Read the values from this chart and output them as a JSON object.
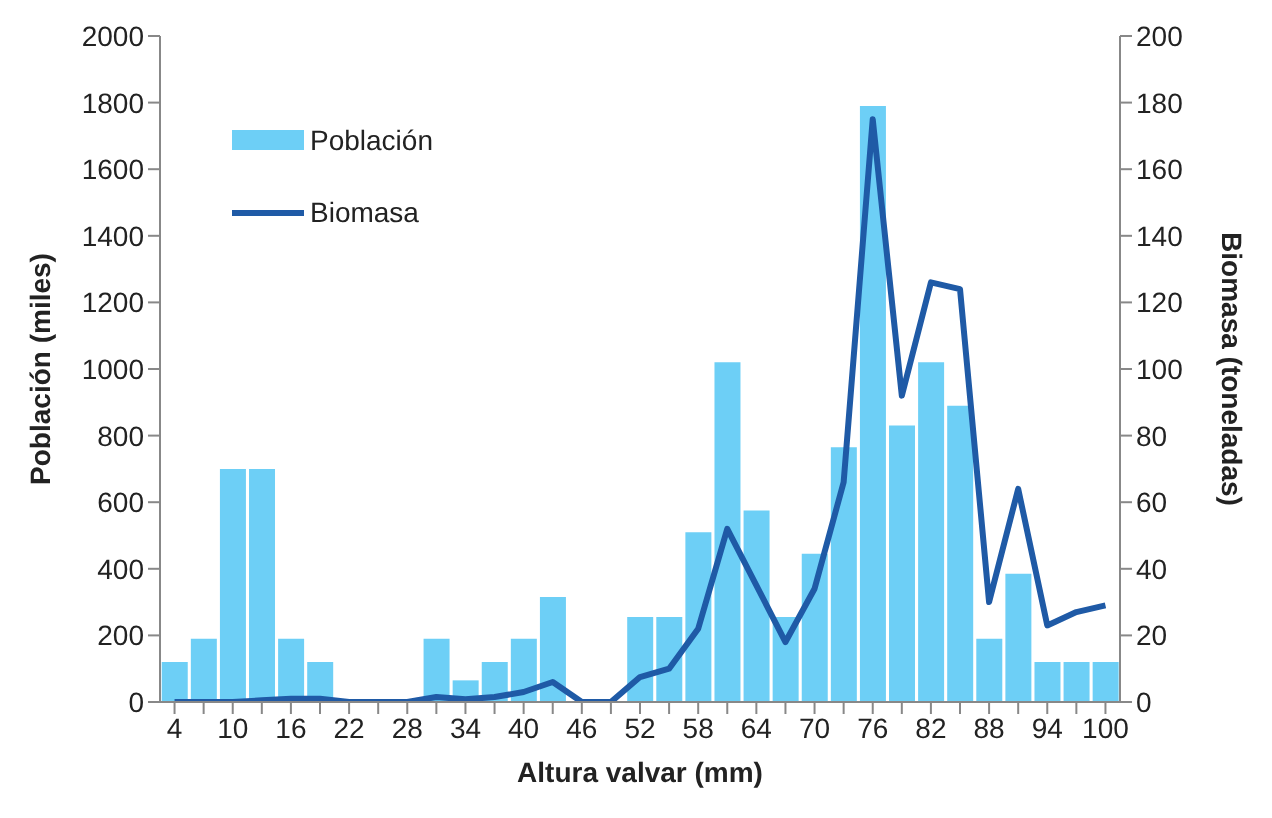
{
  "chart_data": {
    "type": "bar",
    "xlabel": "Altura valvar (mm)",
    "ylabel": "Población (miles)",
    "y2label": "Biomasa (toneladas)",
    "categories": [
      "4",
      null,
      "10",
      null,
      "16",
      null,
      "22",
      null,
      "28",
      null,
      "34",
      null,
      "40",
      null,
      "46",
      null,
      "52",
      null,
      "58",
      null,
      "64",
      null,
      "70",
      null,
      "76",
      null,
      "82",
      null,
      "88",
      null,
      "94",
      null,
      "100"
    ],
    "series": [
      {
        "name": "Población",
        "color": "#6dcff6",
        "values": [
          120,
          190,
          700,
          700,
          190,
          120,
          0,
          0,
          0,
          190,
          65,
          120,
          190,
          315,
          0,
          0,
          255,
          255,
          510,
          1020,
          575,
          255,
          445,
          765,
          1790,
          830,
          1020,
          890,
          190,
          385,
          120,
          120,
          120
        ]
      },
      {
        "name": "Biomasa",
        "type": "line",
        "axis": "y2",
        "color": "#1f5aa6",
        "values": [
          0,
          0,
          0,
          0.5,
          1,
          1,
          0,
          0,
          0,
          1.5,
          0.8,
          1.5,
          3,
          6,
          0,
          0,
          7.5,
          10,
          22,
          52,
          35,
          18,
          34,
          66,
          175,
          92,
          126,
          124,
          30,
          64,
          23,
          27,
          29
        ]
      }
    ],
    "ylim": [
      0,
      2000
    ],
    "yticks": [
      0,
      200,
      400,
      600,
      800,
      1000,
      1200,
      1400,
      1600,
      1800,
      2000
    ],
    "y2lim": [
      0,
      200
    ],
    "y2ticks": [
      0,
      20,
      40,
      60,
      80,
      100,
      120,
      140,
      160,
      180,
      200
    ],
    "grid": false,
    "legend": "top left",
    "marker": "none",
    "line_style": "solid"
  }
}
